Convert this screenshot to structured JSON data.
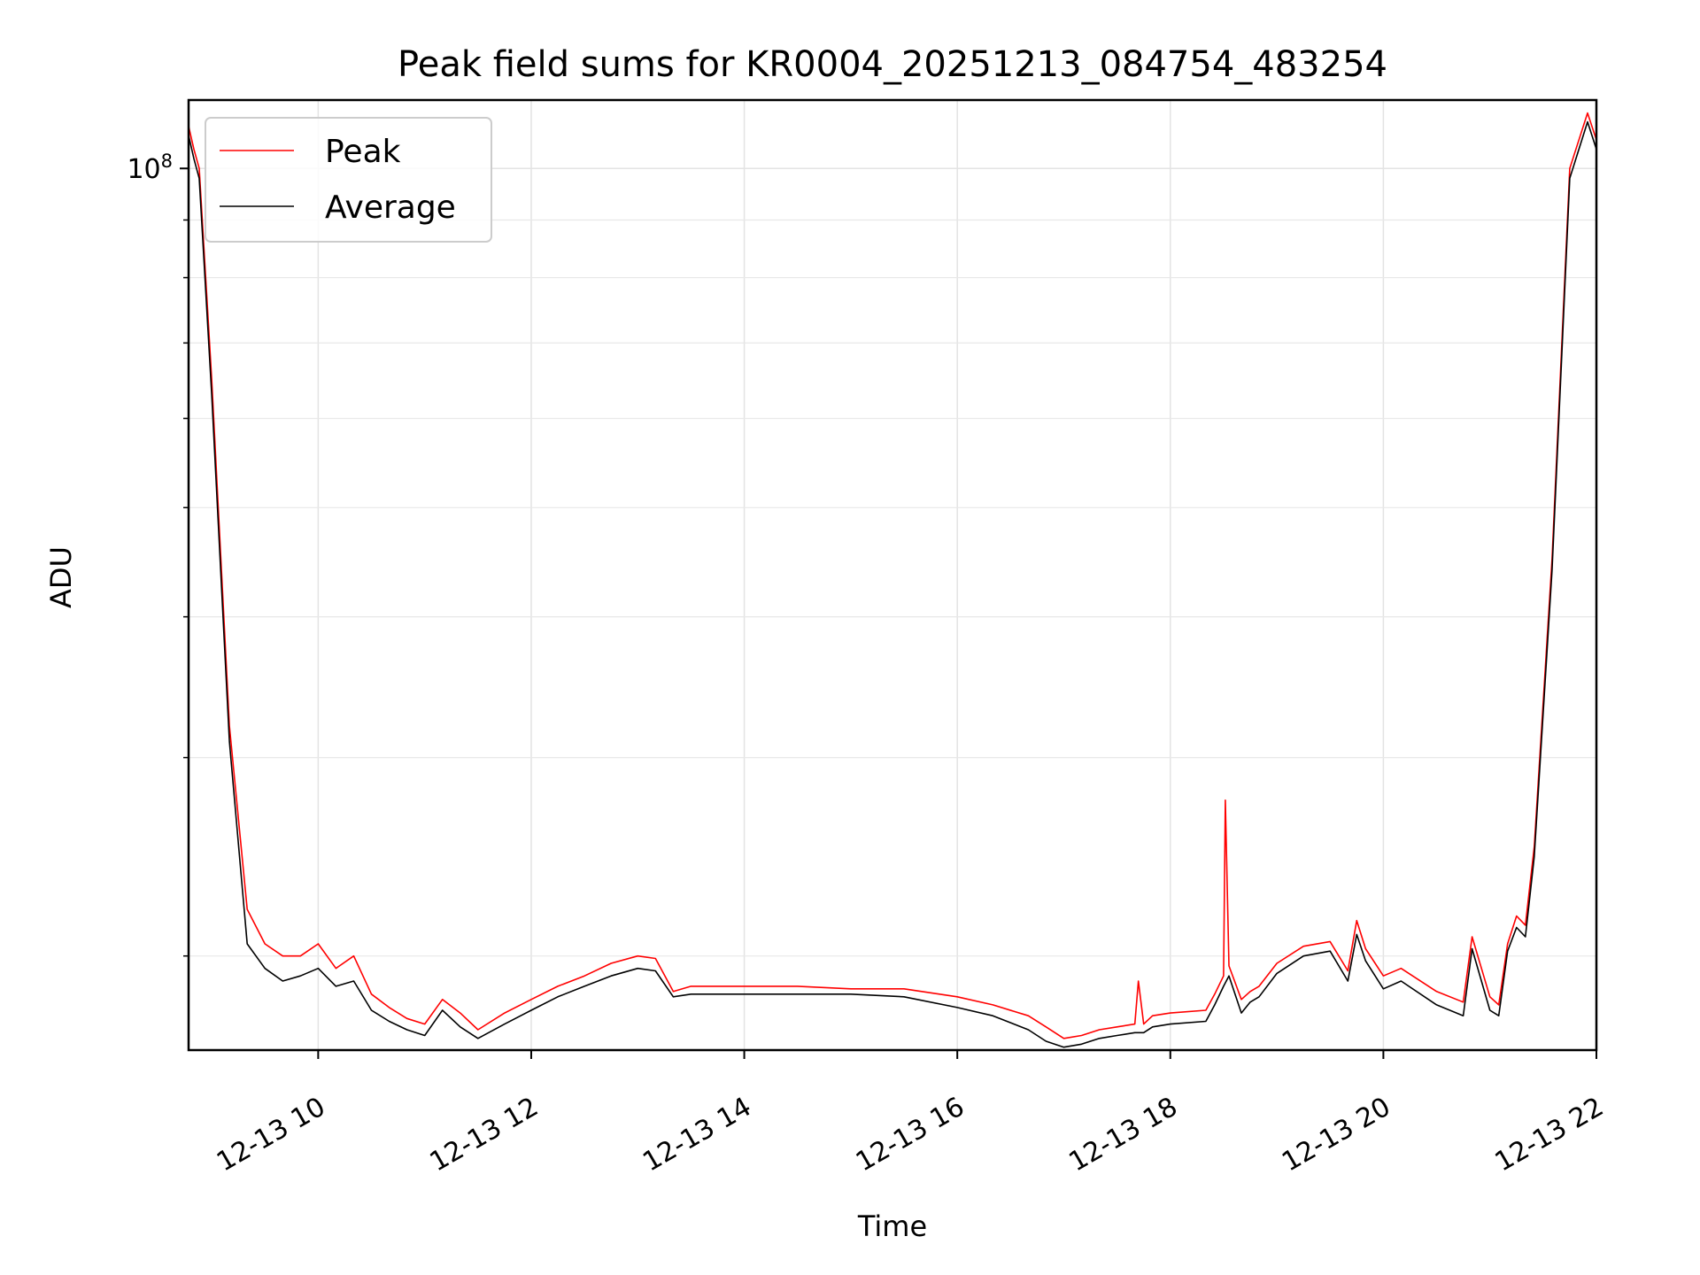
{
  "chart_data": {
    "type": "line",
    "title": "Peak field sums for KR0004_20251213_084754_483254",
    "xlabel": "Time",
    "ylabel": "ADU",
    "yscale": "log",
    "grid": true,
    "legend": {
      "placement": "top-left"
    },
    "xlim": [
      "2025-12-13 08:47",
      "2025-12-13 22:00"
    ],
    "ylim": [
      16500000,
      115000000
    ],
    "x_ticks": [
      "12-13 10",
      "12-13 12",
      "12-13 14",
      "12-13 16",
      "12-13 18",
      "12-13 20",
      "12-13 22"
    ],
    "x_tick_values": [
      "2025-12-13 10:00",
      "2025-12-13 12:00",
      "2025-12-13 14:00",
      "2025-12-13 16:00",
      "2025-12-13 18:00",
      "2025-12-13 20:00",
      "2025-12-13 22:00"
    ],
    "y_major_ticks": [
      {
        "value": 100000000,
        "base": "10",
        "exponent": "8"
      }
    ],
    "y_minor_ticks": [
      20000000,
      30000000,
      40000000,
      50000000,
      60000000,
      70000000,
      80000000,
      90000000
    ],
    "series": [
      {
        "name": "Peak",
        "color": "#ff0000",
        "x": [
          "08:47",
          "08:50",
          "08:53",
          "09:00",
          "09:10",
          "09:20",
          "09:30",
          "09:40",
          "09:50",
          "10:00",
          "10:10",
          "10:20",
          "10:30",
          "10:40",
          "10:50",
          "11:00",
          "11:10",
          "11:20",
          "11:30",
          "11:45",
          "12:00",
          "12:15",
          "12:30",
          "12:45",
          "13:00",
          "13:10",
          "13:20",
          "13:30",
          "14:00",
          "14:30",
          "15:00",
          "15:30",
          "16:00",
          "16:20",
          "16:40",
          "16:50",
          "17:00",
          "17:10",
          "17:20",
          "17:30",
          "17:40",
          "17:42",
          "17:45",
          "17:50",
          "18:00",
          "18:20",
          "18:25",
          "18:30",
          "18:31",
          "18:33",
          "18:40",
          "18:45",
          "18:50",
          "19:00",
          "19:15",
          "19:30",
          "19:40",
          "19:45",
          "19:50",
          "20:00",
          "20:10",
          "20:30",
          "20:45",
          "20:50",
          "21:00",
          "21:05",
          "21:10",
          "21:15",
          "21:20",
          "21:25",
          "21:35",
          "21:45",
          "21:55",
          "22:00"
        ],
        "y": [
          109000000,
          104000000,
          100000000,
          65000000,
          32000000,
          22000000,
          20500000,
          20000000,
          20000000,
          20500000,
          19500000,
          20000000,
          18500000,
          18000000,
          17600000,
          17400000,
          18300000,
          17800000,
          17200000,
          17800000,
          18300000,
          18800000,
          19200000,
          19700000,
          20000000,
          19900000,
          18600000,
          18800000,
          18800000,
          18800000,
          18700000,
          18700000,
          18400000,
          18100000,
          17700000,
          17300000,
          16900000,
          17000000,
          17200000,
          17300000,
          17400000,
          19000000,
          17400000,
          17700000,
          17800000,
          17900000,
          18500000,
          19200000,
          27500000,
          19600000,
          18300000,
          18600000,
          18800000,
          19700000,
          20400000,
          20600000,
          19400000,
          21500000,
          20300000,
          19200000,
          19500000,
          18600000,
          18200000,
          20800000,
          18400000,
          18100000,
          20500000,
          21700000,
          21300000,
          25000000,
          45000000,
          100000000,
          112000000,
          106000000
        ]
      },
      {
        "name": "Average",
        "color": "#000000",
        "x": [
          "08:47",
          "08:50",
          "08:53",
          "09:00",
          "09:10",
          "09:20",
          "09:30",
          "09:40",
          "09:50",
          "10:00",
          "10:10",
          "10:20",
          "10:30",
          "10:40",
          "10:50",
          "11:00",
          "11:10",
          "11:20",
          "11:30",
          "11:45",
          "12:00",
          "12:15",
          "12:30",
          "12:45",
          "13:00",
          "13:10",
          "13:20",
          "13:30",
          "14:00",
          "14:30",
          "15:00",
          "15:30",
          "16:00",
          "16:20",
          "16:40",
          "16:50",
          "17:00",
          "17:10",
          "17:20",
          "17:30",
          "17:40",
          "17:45",
          "17:50",
          "18:00",
          "18:20",
          "18:25",
          "18:30",
          "18:33",
          "18:40",
          "18:45",
          "18:50",
          "19:00",
          "19:15",
          "19:30",
          "19:40",
          "19:45",
          "19:50",
          "20:00",
          "20:10",
          "20:30",
          "20:45",
          "20:50",
          "21:00",
          "21:05",
          "21:10",
          "21:15",
          "21:20",
          "21:25",
          "21:35",
          "21:45",
          "21:55",
          "22:00"
        ],
        "y": [
          107000000,
          102000000,
          98000000,
          63000000,
          31000000,
          20500000,
          19500000,
          19000000,
          19200000,
          19500000,
          18800000,
          19000000,
          17900000,
          17500000,
          17200000,
          17000000,
          17900000,
          17300000,
          16900000,
          17400000,
          17900000,
          18400000,
          18800000,
          19200000,
          19500000,
          19400000,
          18400000,
          18500000,
          18500000,
          18500000,
          18500000,
          18400000,
          18000000,
          17700000,
          17200000,
          16800000,
          16600000,
          16700000,
          16900000,
          17000000,
          17100000,
          17100000,
          17300000,
          17400000,
          17500000,
          18100000,
          18800000,
          19200000,
          17800000,
          18200000,
          18400000,
          19300000,
          20000000,
          20200000,
          19000000,
          20900000,
          19800000,
          18700000,
          19000000,
          18100000,
          17700000,
          20300000,
          17900000,
          17700000,
          20200000,
          21200000,
          20800000,
          24500000,
          44000000,
          98000000,
          110000000,
          104000000
        ]
      }
    ]
  }
}
